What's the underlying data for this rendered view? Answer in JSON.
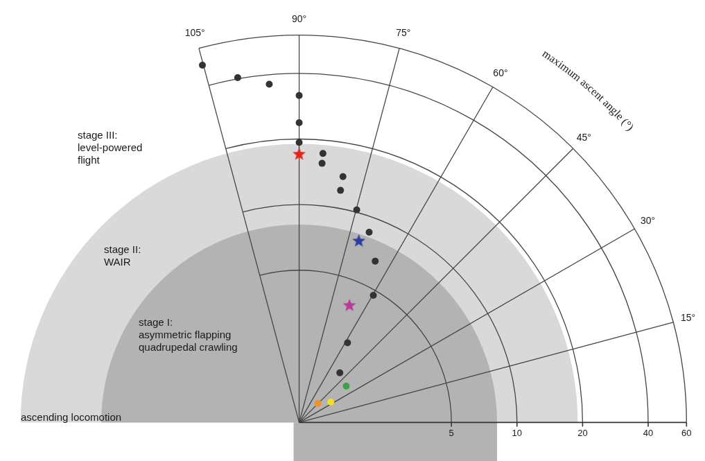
{
  "chart_data": {
    "type": "polar",
    "ylabel": "maximum ascent angle (°)",
    "xlim": [
      1,
      60
    ],
    "xticks": [
      5,
      10,
      20,
      40,
      60
    ],
    "log": "x",
    "ylim": [
      0,
      105
    ],
    "yticks": [
      {
        "value": 15,
        "label": "15°"
      },
      {
        "value": 30,
        "label": "30°"
      },
      {
        "value": 45,
        "label": "45°"
      },
      {
        "value": 60,
        "label": "60°"
      },
      {
        "value": 75,
        "label": "75°"
      },
      {
        "value": 90,
        "label": "90°"
      },
      {
        "value": 105,
        "label": "105°"
      }
    ],
    "grid": true,
    "series": [
      {
        "color": "#333333",
        "marker": "circle",
        "x": [
          52.0,
          42.1,
          37.6,
          32.9,
          24.6,
          19.9,
          17.9,
          16.1,
          14.4,
          12.4,
          10.5,
          8.7,
          6.7,
          4.8,
          2.7,
          1.98
        ],
        "values": [
          105,
          100,
          95,
          90,
          90,
          90,
          85,
          85,
          80,
          80,
          75,
          70,
          65,
          60,
          59,
          51
        ]
      },
      {
        "color": "#e8231f",
        "marker": "star",
        "x": [
          17.6
        ],
        "values": [
          90
        ]
      },
      {
        "color": "#2d3f9e",
        "marker": "star",
        "x": [
          7.7
        ],
        "values": [
          72
        ]
      },
      {
        "color": "#b93a9a",
        "marker": "star",
        "x": [
          3.9
        ],
        "values": [
          67
        ]
      },
      {
        "color": "#3aa544",
        "marker": "circle",
        "x": [
          1.88
        ],
        "values": [
          38
        ]
      },
      {
        "color": "#f0e020",
        "marker": "circle",
        "x": [
          1.49
        ],
        "values": [
          33
        ]
      },
      {
        "color": "#f0912a",
        "marker": "circle",
        "x": [
          1.33
        ],
        "values": [
          46
        ]
      }
    ],
    "regions": [
      {
        "label": [
          "stage I:",
          "asymmetric flapping",
          "quadrupedal crawling"
        ],
        "x_max": 8.1,
        "color": "#b3b3b3"
      },
      {
        "label": [
          "stage II:",
          "WAIR"
        ],
        "x_max": 19,
        "color": "#d9d9d9"
      },
      {
        "label": [
          "stage III:",
          "level-powered",
          "flight"
        ]
      }
    ],
    "annotations": [
      {
        "text": "ascending locomotion"
      }
    ]
  }
}
